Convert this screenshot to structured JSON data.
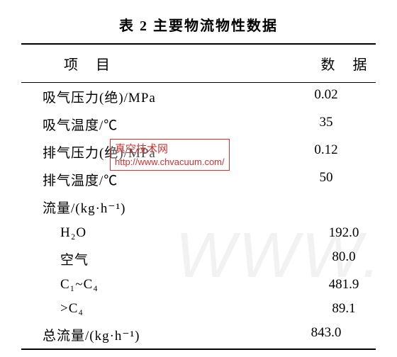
{
  "title": "表 2  主要物流物性数据",
  "header": {
    "left": "项 目",
    "right": "数 据"
  },
  "rows": [
    {
      "label": "吸气压力(绝)/MPa",
      "value": "0.02",
      "indent": false
    },
    {
      "label": "吸气温度/℃",
      "value": "35",
      "indent": false
    },
    {
      "label": "排气压力(绝)/MPa",
      "value": "0.12",
      "indent": false
    },
    {
      "label": "排气温度/℃",
      "value": "50",
      "indent": false
    },
    {
      "label": "流量/(kg·h⁻¹)",
      "value": "",
      "indent": false
    },
    {
      "label": "H₂O",
      "value": "192.0",
      "indent": true
    },
    {
      "label": "空气",
      "value": "80.0",
      "indent": true
    },
    {
      "label": "C₁~C₄",
      "value": "481.9",
      "indent": true
    },
    {
      "label": ">C₄",
      "value": "89.1",
      "indent": true
    },
    {
      "label": "总流量/(kg·h⁻¹)",
      "value": "843.0",
      "indent": false
    }
  ],
  "watermark": {
    "cn": "真空技术网",
    "url": "http://www.chvacuum.com/",
    "bg": "WWW."
  },
  "colors": {
    "watermark_red": "#cc3333",
    "bg_watermark": "#f2f2f2",
    "text": "#000000",
    "background": "#ffffff"
  },
  "typography": {
    "title_fontsize": 20,
    "body_fontsize": 19,
    "font_family": "SimSun"
  }
}
